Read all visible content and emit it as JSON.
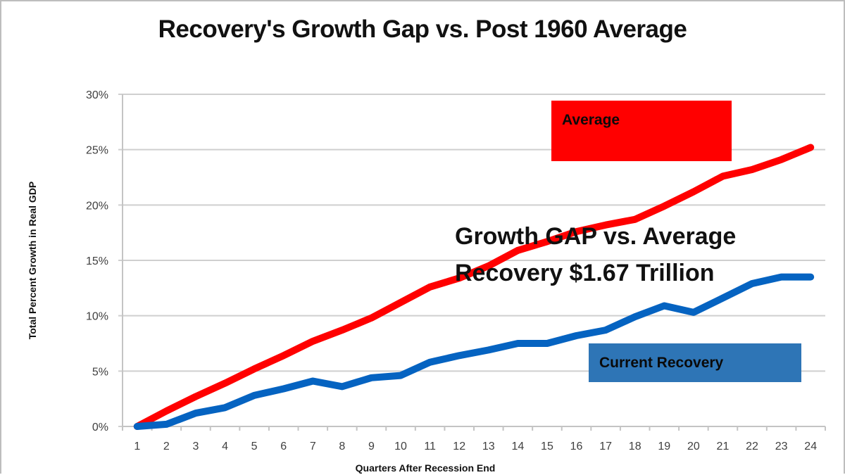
{
  "chart_data": {
    "type": "line",
    "title": "Recovery's Growth Gap vs. Post 1960 Average",
    "xlabel": "Quarters After Recession End",
    "ylabel": "Total Percent Growth in Real GDP",
    "ylim": [
      0,
      30
    ],
    "y_ticks": [
      0,
      5,
      10,
      15,
      20,
      25,
      30
    ],
    "y_tick_labels": [
      "0%",
      "5%",
      "10%",
      "15%",
      "20%",
      "25%",
      "30%"
    ],
    "categories": [
      "1",
      "2",
      "3",
      "4",
      "5",
      "6",
      "7",
      "8",
      "9",
      "10",
      "11",
      "12",
      "13",
      "14",
      "15",
      "16",
      "17",
      "18",
      "19",
      "20",
      "21",
      "22",
      "23",
      "24"
    ],
    "grid": true,
    "series": [
      {
        "name": "Average",
        "color": "#ff0000",
        "values": [
          0,
          1.4,
          2.7,
          3.9,
          5.2,
          6.4,
          7.7,
          8.7,
          9.8,
          11.2,
          12.6,
          13.4,
          14.5,
          15.9,
          16.7,
          17.6,
          18.2,
          18.7,
          19.9,
          21.2,
          22.6,
          23.2,
          24.1,
          25.2
        ]
      },
      {
        "name": "Current Recovery",
        "color": "#0563c1",
        "values": [
          0,
          0.2,
          1.2,
          1.7,
          2.8,
          3.4,
          4.1,
          3.6,
          4.4,
          4.6,
          5.8,
          6.4,
          6.9,
          7.5,
          7.5,
          8.2,
          8.7,
          9.9,
          10.9,
          10.3,
          11.6,
          12.9,
          13.5,
          13.5
        ]
      }
    ],
    "legend_boxes": [
      {
        "label": "Average",
        "color": "#ff0000",
        "placement": "top-right"
      },
      {
        "label": "Current Recovery",
        "color": "#2e75b6",
        "placement": "bottom-right"
      }
    ],
    "annotation": {
      "lines": [
        "Growth GAP vs. Average",
        "Recovery $1.67 Trillion"
      ]
    }
  }
}
